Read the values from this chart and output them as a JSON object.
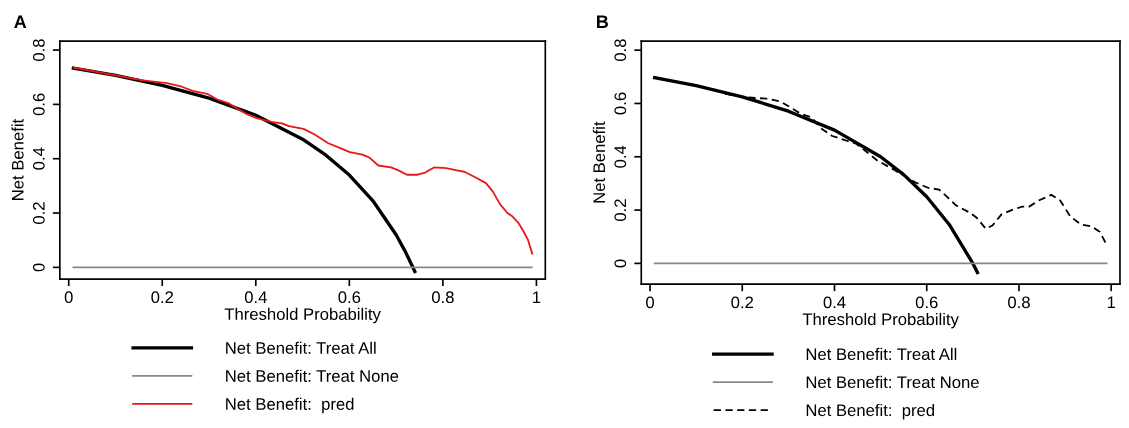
{
  "chart_data": [
    {
      "type": "line",
      "title": "A",
      "xlabel": "Threshold Probability",
      "ylabel": "Net Benefit",
      "xlim": [
        -0.019,
        1.019
      ],
      "ylim": [
        -0.043,
        0.833
      ],
      "xticks": [
        0,
        0.2,
        0.4,
        0.6,
        0.8,
        1
      ],
      "yticks": [
        0,
        0.2,
        0.4,
        0.6,
        0.8
      ],
      "grid": false,
      "legend": "bottom",
      "series": [
        {
          "name": "Net Benefit: Treat All",
          "color": "#000000",
          "x": [
            0.01,
            0.1,
            0.2,
            0.3,
            0.4,
            0.5,
            0.55,
            0.6,
            0.65,
            0.7,
            0.72,
            0.74
          ],
          "values": [
            0.733,
            0.707,
            0.67,
            0.623,
            0.56,
            0.472,
            0.413,
            0.34,
            0.246,
            0.12,
            0.057,
            -0.015
          ]
        },
        {
          "name": "Net Benefit: Treat None",
          "color": "#888888",
          "x": [
            0.01,
            0.99
          ],
          "values": [
            0,
            0
          ]
        },
        {
          "name": "Net Benefit:  pred",
          "color": "#e8171b",
          "x": [
            0.011,
            0.158,
            0.21,
            0.242,
            0.265,
            0.296,
            0.318,
            0.341,
            0.36,
            0.38,
            0.402,
            0.433,
            0.456,
            0.471,
            0.502,
            0.525,
            0.555,
            0.578,
            0.601,
            0.628,
            0.643,
            0.662,
            0.689,
            0.704,
            0.723,
            0.746,
            0.762,
            0.781,
            0.807,
            0.83,
            0.846,
            0.869,
            0.892,
            0.907,
            0.922,
            0.938,
            0.949,
            0.961,
            0.972,
            0.982,
            0.991
          ],
          "values": [
            0.735,
            0.688,
            0.678,
            0.665,
            0.65,
            0.639,
            0.618,
            0.605,
            0.585,
            0.565,
            0.549,
            0.536,
            0.53,
            0.52,
            0.51,
            0.49,
            0.457,
            0.441,
            0.424,
            0.415,
            0.404,
            0.375,
            0.368,
            0.358,
            0.341,
            0.341,
            0.349,
            0.368,
            0.365,
            0.357,
            0.352,
            0.332,
            0.31,
            0.279,
            0.233,
            0.2,
            0.187,
            0.165,
            0.134,
            0.101,
            0.051
          ]
        }
      ]
    },
    {
      "type": "line",
      "title": "B",
      "xlabel": "Threshold Probability",
      "ylabel": "Net Benefit",
      "xlim": [
        -0.019,
        1.019
      ],
      "ylim": [
        -0.078,
        0.834
      ],
      "xticks": [
        0,
        0.2,
        0.4,
        0.6,
        0.8,
        1
      ],
      "yticks": [
        0,
        0.2,
        0.4,
        0.6,
        0.8
      ],
      "grid": false,
      "legend": "bottom",
      "series": [
        {
          "name": "Net Benefit: Treat All",
          "color": "#000000",
          "x": [
            0.01,
            0.1,
            0.2,
            0.3,
            0.4,
            0.5,
            0.55,
            0.6,
            0.65,
            0.7,
            0.71
          ],
          "values": [
            0.697,
            0.667,
            0.625,
            0.571,
            0.5,
            0.4,
            0.333,
            0.25,
            0.143,
            0,
            -0.034
          ]
        },
        {
          "name": "Net Benefit: Treat None",
          "color": "#888888",
          "x": [
            0.01,
            0.99
          ],
          "values": [
            0,
            0
          ]
        },
        {
          "name": "Net Benefit:  pred",
          "color": "#000000",
          "line_style": "dashed",
          "x": [
            0.163,
            0.207,
            0.252,
            0.282,
            0.305,
            0.327,
            0.35,
            0.372,
            0.395,
            0.425,
            0.447,
            0.47,
            0.492,
            0.522,
            0.552,
            0.575,
            0.604,
            0.627,
            0.642,
            0.664,
            0.694,
            0.709,
            0.728,
            0.743,
            0.762,
            0.784,
            0.807,
            0.822,
            0.844,
            0.87,
            0.889,
            0.911,
            0.934,
            0.957,
            0.975,
            0.99
          ],
          "values": [
            0.636,
            0.623,
            0.618,
            0.608,
            0.585,
            0.561,
            0.548,
            0.505,
            0.478,
            0.461,
            0.449,
            0.418,
            0.387,
            0.358,
            0.328,
            0.304,
            0.283,
            0.277,
            0.253,
            0.217,
            0.19,
            0.17,
            0.13,
            0.143,
            0.184,
            0.2,
            0.213,
            0.213,
            0.237,
            0.257,
            0.237,
            0.177,
            0.146,
            0.139,
            0.119,
            0.07
          ]
        }
      ]
    }
  ]
}
